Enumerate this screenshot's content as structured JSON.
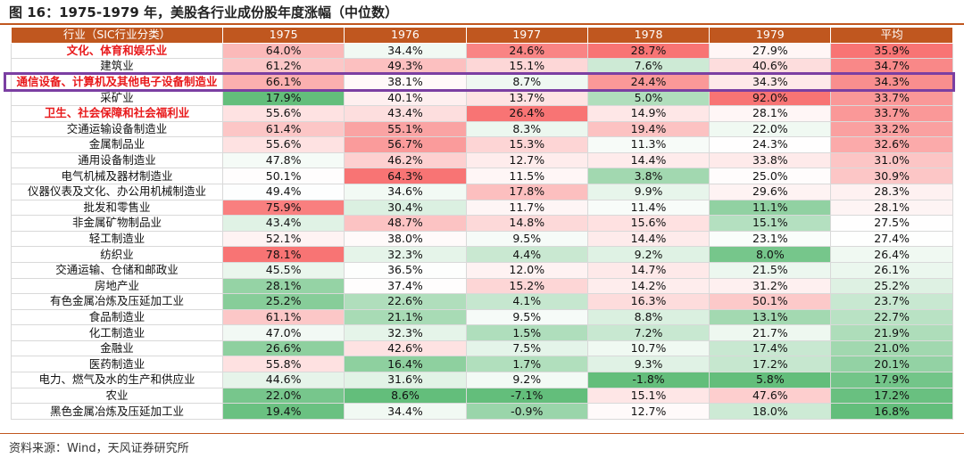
{
  "figure": {
    "title": "图 16：1975-1979 年，美股各行业成份股年度涨幅（中位数）"
  },
  "table": {
    "headers": [
      "行业（SIC行业分类）",
      "1975",
      "1976",
      "1977",
      "1978",
      "1979",
      "平均"
    ],
    "rows": [
      {
        "name": "文化、体育和娱乐业",
        "red": true,
        "values": [
          "64.0%",
          "34.4%",
          "24.6%",
          "28.7%",
          "27.9%",
          "35.9%"
        ]
      },
      {
        "name": "建筑业",
        "red": false,
        "values": [
          "61.2%",
          "49.3%",
          "15.1%",
          "7.6%",
          "40.6%",
          "34.7%"
        ]
      },
      {
        "name": "通信设备、计算机及其他电子设备制造业",
        "red": true,
        "values": [
          "66.1%",
          "38.1%",
          "8.7%",
          "24.4%",
          "34.3%",
          "34.3%"
        ]
      },
      {
        "name": "采矿业",
        "red": false,
        "values": [
          "17.9%",
          "40.1%",
          "13.7%",
          "5.0%",
          "92.0%",
          "33.7%"
        ]
      },
      {
        "name": "卫生、社会保障和社会福利业",
        "red": true,
        "values": [
          "55.6%",
          "43.4%",
          "26.4%",
          "14.9%",
          "28.1%",
          "33.7%"
        ]
      },
      {
        "name": "交通运输设备制造业",
        "red": false,
        "values": [
          "61.4%",
          "55.1%",
          "8.3%",
          "19.4%",
          "22.0%",
          "33.2%"
        ]
      },
      {
        "name": "金属制品业",
        "red": false,
        "values": [
          "55.6%",
          "56.7%",
          "15.3%",
          "11.3%",
          "24.3%",
          "32.6%"
        ]
      },
      {
        "name": "通用设备制造业",
        "red": false,
        "values": [
          "47.8%",
          "46.2%",
          "12.7%",
          "14.4%",
          "33.8%",
          "31.0%"
        ]
      },
      {
        "name": "电气机械及器材制造业",
        "red": false,
        "values": [
          "50.1%",
          "64.3%",
          "11.5%",
          "3.8%",
          "25.0%",
          "30.9%"
        ]
      },
      {
        "name": "仪器仪表及文化、办公用机械制造业",
        "red": false,
        "values": [
          "49.4%",
          "34.6%",
          "17.8%",
          "9.9%",
          "29.6%",
          "28.3%"
        ]
      },
      {
        "name": "批发和零售业",
        "red": false,
        "values": [
          "75.9%",
          "30.4%",
          "11.7%",
          "11.4%",
          "11.1%",
          "28.1%"
        ]
      },
      {
        "name": "非金属矿物制品业",
        "red": false,
        "values": [
          "43.4%",
          "48.7%",
          "14.8%",
          "15.6%",
          "15.1%",
          "27.5%"
        ]
      },
      {
        "name": "轻工制造业",
        "red": false,
        "values": [
          "52.1%",
          "38.0%",
          "9.5%",
          "14.4%",
          "23.1%",
          "27.4%"
        ]
      },
      {
        "name": "纺织业",
        "red": false,
        "values": [
          "78.1%",
          "32.3%",
          "4.4%",
          "9.2%",
          "8.0%",
          "26.4%"
        ]
      },
      {
        "name": "交通运输、仓储和邮政业",
        "red": false,
        "values": [
          "45.5%",
          "36.5%",
          "12.0%",
          "14.7%",
          "21.5%",
          "26.1%"
        ]
      },
      {
        "name": "房地产业",
        "red": false,
        "values": [
          "28.1%",
          "37.4%",
          "15.2%",
          "14.2%",
          "31.2%",
          "25.2%"
        ]
      },
      {
        "name": "有色金属冶炼及压延加工业",
        "red": false,
        "values": [
          "25.2%",
          "22.6%",
          "4.1%",
          "16.3%",
          "50.1%",
          "23.7%"
        ]
      },
      {
        "name": "食品制造业",
        "red": false,
        "values": [
          "61.1%",
          "21.1%",
          "9.5%",
          "8.8%",
          "13.1%",
          "22.7%"
        ]
      },
      {
        "name": "化工制造业",
        "red": false,
        "values": [
          "47.0%",
          "32.3%",
          "1.5%",
          "7.2%",
          "21.7%",
          "21.9%"
        ]
      },
      {
        "name": "金融业",
        "red": false,
        "values": [
          "26.6%",
          "42.6%",
          "7.5%",
          "10.7%",
          "17.4%",
          "21.0%"
        ]
      },
      {
        "name": "医药制造业",
        "red": false,
        "values": [
          "55.8%",
          "16.4%",
          "1.7%",
          "9.3%",
          "17.2%",
          "20.1%"
        ]
      },
      {
        "name": "电力、燃气及水的生产和供应业",
        "red": false,
        "values": [
          "44.6%",
          "31.6%",
          "9.2%",
          "-1.8%",
          "5.8%",
          "17.9%"
        ]
      },
      {
        "name": "农业",
        "red": false,
        "values": [
          "22.0%",
          "8.6%",
          "-7.1%",
          "15.1%",
          "47.6%",
          "17.2%"
        ]
      },
      {
        "name": "黑色金属冶炼及压延加工业",
        "red": false,
        "values": [
          "19.4%",
          "34.4%",
          "-0.9%",
          "12.7%",
          "18.0%",
          "16.8%"
        ]
      }
    ]
  },
  "source": {
    "text": "资料来源：Wind，天风证券研究所"
  },
  "colors": {
    "header_bg": "#c0571f",
    "high": "#f87474",
    "mid": "#ffffff",
    "low": "#63be7b",
    "highlight_border": "#7b3fa2",
    "emphasis_text": "#e8191b"
  }
}
